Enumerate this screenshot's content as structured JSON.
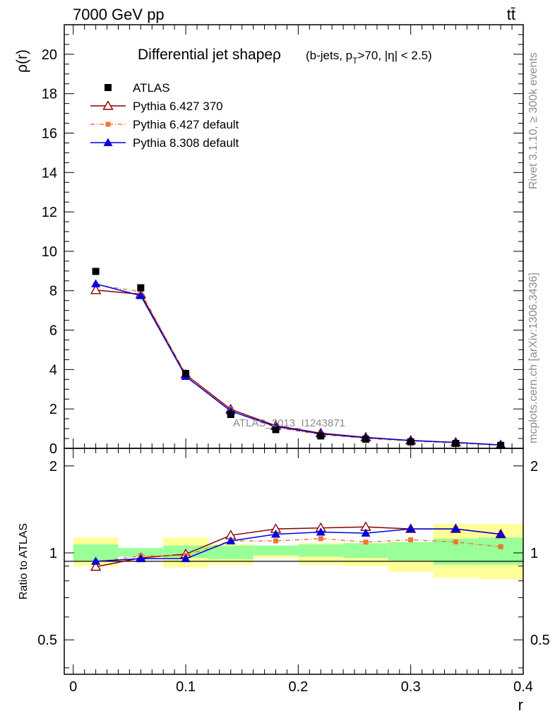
{
  "header": {
    "energy_label": "7000 GeV pp",
    "process_label": "tt̄"
  },
  "side": {
    "rivet_label": "Rivet 3.1.10, ≥ 300k events",
    "mcplots_label": "mcplots.cern.ch [arXiv:1306.3436]"
  },
  "chart_data": {
    "type": "line",
    "title": "Differential jet shapeρ",
    "subtitle": "(b-jets, pT>70, |η| < 2.5)",
    "watermark": "ATLAS_2013_I1243871",
    "xlabel": "r",
    "ylabel": "ρ(r)",
    "ratio_ylabel": "Ratio to ATLAS",
    "xlim": [
      -0.008,
      0.4
    ],
    "ylim": [
      0,
      21.5
    ],
    "ratio_ylim": [
      0.38,
      2.3
    ],
    "ratio_scale": "log",
    "x_ticks": [
      "0",
      "0.1",
      "0.2",
      "0.3",
      "0.4"
    ],
    "y_ticks": [
      "0",
      "2",
      "4",
      "6",
      "8",
      "10",
      "12",
      "14",
      "16",
      "18",
      "20"
    ],
    "ratio_ticks": [
      "0.5",
      "1",
      "2"
    ],
    "legend_position": "top-left",
    "x": [
      0.02,
      0.06,
      0.1,
      0.14,
      0.18,
      0.22,
      0.26,
      0.3,
      0.34,
      0.38
    ],
    "bin_edges": [
      0.0,
      0.04,
      0.08,
      0.12,
      0.16,
      0.2,
      0.24,
      0.28,
      0.32,
      0.36,
      0.4
    ],
    "series": [
      {
        "name": "ATLAS",
        "color": "#000000",
        "marker": "filled-square",
        "values": [
          8.98,
          8.15,
          3.8,
          1.72,
          0.95,
          0.63,
          0.46,
          0.33,
          0.25,
          0.15
        ]
      },
      {
        "name": "Pythia 6.427 370",
        "color": "#8b0000",
        "marker": "open-triangle",
        "values": [
          8.03,
          7.82,
          3.75,
          1.98,
          1.15,
          0.77,
          0.56,
          0.4,
          0.3,
          0.17
        ]
      },
      {
        "name": "Pythia 6.427 default",
        "color": "#ee7733",
        "marker": "small-square",
        "dashed": true,
        "values": [
          8.3,
          7.95,
          3.72,
          1.9,
          1.06,
          0.7,
          0.51,
          0.37,
          0.27,
          0.16
        ]
      },
      {
        "name": "Pythia 8.308 default",
        "color": "#0000dd",
        "marker": "filled-triangle",
        "values": [
          8.35,
          7.75,
          3.65,
          1.89,
          1.11,
          0.74,
          0.54,
          0.4,
          0.3,
          0.17
        ]
      }
    ],
    "ratio_series": [
      {
        "name": "Pythia 6.427 370",
        "values": [
          0.895,
          0.96,
          0.99,
          1.15,
          1.21,
          1.22,
          1.23,
          1.21,
          1.21,
          1.16
        ]
      },
      {
        "name": "Pythia 6.427 default",
        "values": [
          0.93,
          0.975,
          0.98,
          1.1,
          1.1,
          1.12,
          1.09,
          1.11,
          1.09,
          1.05
        ]
      },
      {
        "name": "Pythia 8.308 default",
        "values": [
          0.935,
          0.955,
          0.955,
          1.1,
          1.16,
          1.18,
          1.17,
          1.21,
          1.21,
          1.16
        ]
      }
    ],
    "uncertainty_bands": {
      "inner_color": "#99ff99",
      "outer_color": "#ffff99",
      "inner_lo": [
        0.94,
        0.97,
        0.96,
        0.95,
        0.98,
        0.97,
        0.96,
        0.94,
        0.91,
        0.91
      ],
      "inner_hi": [
        1.07,
        1.04,
        1.06,
        1.06,
        1.06,
        1.07,
        1.08,
        1.09,
        1.12,
        1.13
      ],
      "outer_lo": [
        0.9,
        0.97,
        0.89,
        0.91,
        0.96,
        0.91,
        0.9,
        0.86,
        0.82,
        0.81
      ],
      "outer_hi": [
        1.13,
        1.04,
        1.13,
        1.07,
        1.06,
        1.08,
        1.08,
        1.09,
        1.26,
        1.26
      ]
    }
  }
}
